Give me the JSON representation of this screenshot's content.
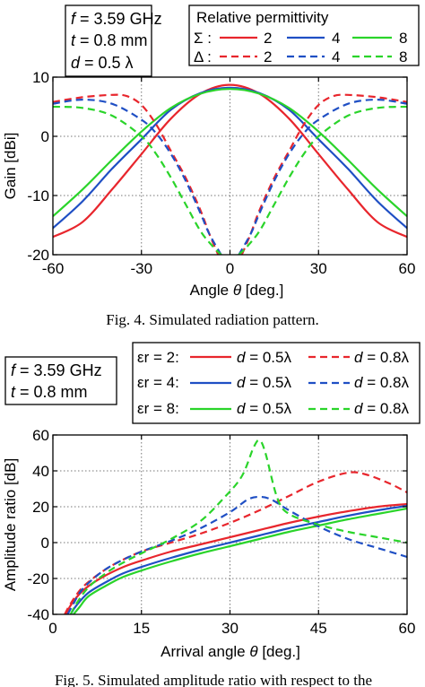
{
  "chart_data": [
    {
      "type": "line",
      "params": [
        {
          "sym": "f",
          "rest": " = 3.59 GHz"
        },
        {
          "sym": "t",
          "rest": " = 0.8 mm"
        },
        {
          "sym": "d",
          "rest": " = 0.5 λ"
        }
      ],
      "legend": {
        "title": "Relative permittivity",
        "rows": [
          {
            "symbol": "Σ :",
            "labels": [
              "2",
              "4",
              "8"
            ]
          },
          {
            "symbol": "Δ :",
            "labels": [
              "2",
              "4",
              "8"
            ]
          }
        ]
      },
      "colors": {
        "er2": "#e8262d",
        "er4": "#1f4fc4",
        "er8": "#2ad42a"
      },
      "xlabel_prefix": "Angle ",
      "xlabel_sym": "θ",
      "xlabel_suffix": " [deg.]",
      "ylabel": "Gain [dBi]",
      "xlim": [
        -60,
        60
      ],
      "ylim": [
        -20,
        10
      ],
      "xticks": [
        -60,
        -30,
        0,
        30,
        60
      ],
      "yticks": [
        -20,
        -10,
        0,
        10
      ],
      "grid": "dotted",
      "series": [
        {
          "key": "er2",
          "dash": false,
          "x": [
            -60,
            -50,
            -40,
            -30,
            -20,
            -10,
            0,
            10,
            20,
            30,
            40,
            50,
            60
          ],
          "y": [
            -17,
            -14.5,
            -9,
            -3,
            3,
            7.2,
            8.7,
            7.2,
            3,
            -3,
            -9,
            -14.5,
            -17
          ]
        },
        {
          "key": "er4",
          "dash": false,
          "x": [
            -60,
            -50,
            -40,
            -30,
            -20,
            -10,
            0,
            10,
            20,
            30,
            40,
            50,
            60
          ],
          "y": [
            -15.5,
            -11,
            -5.5,
            -0.5,
            4.5,
            7.3,
            8.2,
            7.3,
            4.5,
            -0.5,
            -5.5,
            -11,
            -15.5
          ]
        },
        {
          "key": "er8",
          "dash": false,
          "x": [
            -60,
            -50,
            -40,
            -30,
            -20,
            -10,
            0,
            10,
            20,
            30,
            40,
            50,
            60
          ],
          "y": [
            -13.5,
            -9,
            -4,
            0.8,
            4.8,
            7.2,
            8,
            7.2,
            4.8,
            0.8,
            -4,
            -9,
            -13.5
          ]
        },
        {
          "key": "er2",
          "dash": true,
          "x": [
            -60,
            -50,
            -40,
            -35,
            -30,
            -25,
            -20,
            -15,
            -10,
            -7,
            -4
          ],
          "y": [
            5.8,
            6.6,
            7,
            6.8,
            5.3,
            2,
            -2.5,
            -7,
            -12.5,
            -16.5,
            -20
          ]
        },
        {
          "key": "er2",
          "dash": true,
          "x": [
            4,
            7,
            10,
            15,
            20,
            25,
            30,
            35,
            40,
            50,
            60
          ],
          "y": [
            -20,
            -16.5,
            -12.5,
            -7,
            -2.5,
            2,
            5.3,
            6.8,
            7,
            6.6,
            5.8
          ]
        },
        {
          "key": "er4",
          "dash": true,
          "x": [
            -60,
            -50,
            -40,
            -30,
            -25,
            -20,
            -15,
            -10,
            -7,
            -3
          ],
          "y": [
            5.5,
            6.2,
            5.5,
            2.8,
            0.5,
            -3,
            -7.5,
            -13,
            -16.5,
            -20
          ]
        },
        {
          "key": "er4",
          "dash": true,
          "x": [
            3,
            7,
            10,
            15,
            20,
            25,
            30,
            40,
            50,
            60
          ],
          "y": [
            -20,
            -16.5,
            -13,
            -7.5,
            -3,
            0.5,
            2.8,
            5.5,
            6.2,
            5.5
          ]
        },
        {
          "key": "er8",
          "dash": true,
          "x": [
            -60,
            -50,
            -40,
            -30,
            -25,
            -20,
            -15,
            -10,
            -6,
            -3
          ],
          "y": [
            5,
            4.8,
            3.5,
            0,
            -3,
            -7,
            -11.5,
            -16,
            -18.5,
            -20
          ]
        },
        {
          "key": "er8",
          "dash": true,
          "x": [
            3,
            6,
            10,
            15,
            20,
            25,
            30,
            40,
            50,
            60
          ],
          "y": [
            -20,
            -18.5,
            -16,
            -11.5,
            -7,
            -3,
            0,
            3.5,
            4.8,
            5
          ]
        }
      ],
      "caption": "Fig. 4. Simulated radiation pattern."
    },
    {
      "type": "line",
      "params": [
        {
          "sym": "f",
          "rest": " = 3.59 GHz"
        },
        {
          "sym": "t",
          "rest": " = 0.8 mm"
        }
      ],
      "legend": {
        "rows": [
          {
            "label": "εr = 2:",
            "key": "er2",
            "d_solid": " = 0.5λ",
            "d_dash": " = 0.8λ"
          },
          {
            "label": "εr = 4:",
            "key": "er4",
            "d_solid": " = 0.5λ",
            "d_dash": " = 0.8λ"
          },
          {
            "label": "εr = 8:",
            "key": "er8",
            "d_solid": " = 0.5λ",
            "d_dash": " = 0.8λ"
          }
        ]
      },
      "colors": {
        "er2": "#e8262d",
        "er4": "#1f4fc4",
        "er8": "#2ad42a"
      },
      "xlabel_prefix": "Arrival angle ",
      "xlabel_sym": "θ",
      "xlabel_suffix": " [deg.]",
      "ylabel": "Amplitude ratio [dB]",
      "xlim": [
        0,
        60
      ],
      "ylim": [
        -40,
        60
      ],
      "xticks": [
        0,
        15,
        30,
        45,
        60
      ],
      "yticks": [
        -40,
        -20,
        0,
        20,
        40,
        60
      ],
      "grid": "dotted",
      "series": [
        {
          "key": "er2",
          "dash": false,
          "x": [
            2.3,
            3,
            5,
            8,
            12,
            16,
            20,
            25,
            30,
            35,
            40,
            45,
            50,
            55,
            60
          ],
          "y": [
            -40,
            -35,
            -27,
            -20,
            -13.5,
            -9,
            -5,
            -1,
            3,
            7,
            11,
            14.5,
            17.5,
            20,
            21.5
          ]
        },
        {
          "key": "er4",
          "dash": false,
          "x": [
            3,
            4,
            6,
            9,
            12,
            16,
            20,
            25,
            30,
            35,
            40,
            45,
            50,
            55,
            60
          ],
          "y": [
            -40,
            -35,
            -28,
            -22,
            -17,
            -12.5,
            -8.5,
            -4,
            0,
            4,
            8,
            11.5,
            15,
            18,
            20.5
          ]
        },
        {
          "key": "er8",
          "dash": false,
          "x": [
            3.5,
            4.5,
            6,
            9,
            12,
            16,
            20,
            25,
            30,
            35,
            40,
            45,
            50,
            55,
            60
          ],
          "y": [
            -40,
            -36,
            -30,
            -24,
            -19,
            -14.5,
            -10.5,
            -6,
            -2,
            2,
            6,
            9.5,
            13,
            16,
            19
          ]
        },
        {
          "key": "er2",
          "dash": true,
          "x": [
            2,
            3,
            5,
            8,
            11,
            15,
            20,
            25,
            30,
            35,
            40,
            45,
            50,
            53,
            57,
            60
          ],
          "y": [
            -40,
            -34,
            -25,
            -17,
            -11,
            -5,
            0,
            5,
            11,
            18,
            26,
            34,
            39,
            38,
            33,
            28
          ]
        },
        {
          "key": "er4",
          "dash": true,
          "x": [
            2.5,
            3.5,
            5,
            8,
            11,
            15,
            20,
            25,
            30,
            33,
            35,
            37,
            40,
            45,
            50,
            55,
            60
          ],
          "y": [
            -40,
            -34,
            -26,
            -17,
            -11,
            -5,
            1,
            8,
            17,
            24,
            25.5,
            24,
            18,
            9,
            2,
            -3,
            -8
          ]
        },
        {
          "key": "er8",
          "dash": true,
          "x": [
            3,
            4,
            6,
            9,
            12,
            15,
            20,
            25,
            29,
            32,
            34,
            35,
            36,
            38,
            40,
            45,
            50,
            55,
            60
          ],
          "y": [
            -40,
            -34,
            -25,
            -17,
            -11,
            -6,
            2,
            12,
            25,
            37,
            53,
            57,
            50,
            25,
            16,
            10,
            6,
            3,
            0
          ]
        }
      ],
      "caption": "Fig. 5. Simulated amplitude ratio with respect to the"
    }
  ]
}
